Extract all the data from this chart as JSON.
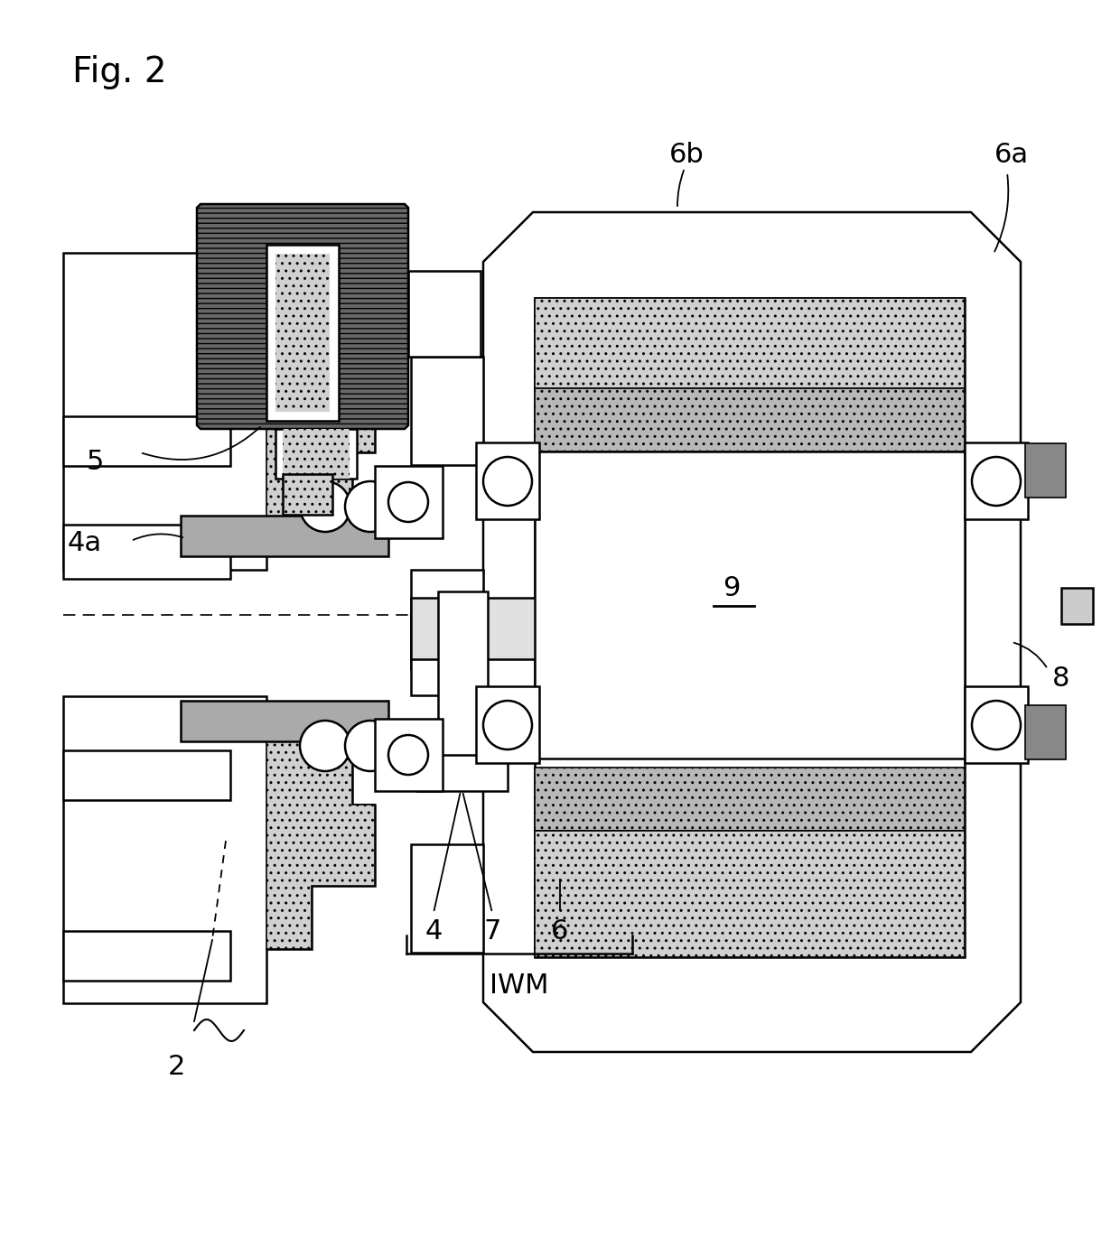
{
  "title": "Fig. 2",
  "fig_width": 12.4,
  "fig_height": 13.71,
  "colors": {
    "white": "#ffffff",
    "black": "#000000",
    "light_dot": "#cccccc",
    "dark_dot": "#aaaaaa",
    "hatch_gray": "#888888"
  },
  "labels": {
    "fig_title": "Fig. 2",
    "5": "5",
    "4a": "4a",
    "4": "4",
    "7": "7",
    "6": "6",
    "6a": "6a",
    "6b": "6b",
    "8": "8",
    "9": "9",
    "2": "2",
    "IWM": "IWM"
  }
}
